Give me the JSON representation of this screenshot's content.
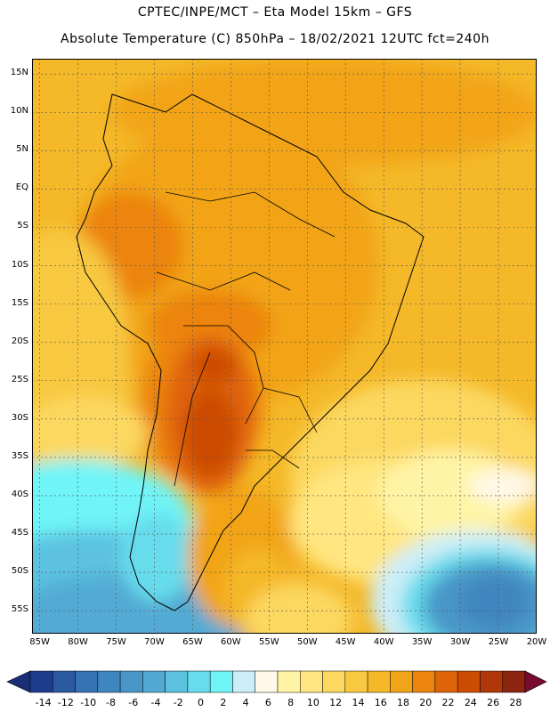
{
  "header": {
    "line1": "CPTEC/INPE/MCT – Eta Model 15km – GFS",
    "line2": "Absolute Temperature (C) 850hPa – 18/02/2021 12UTC fct=240h"
  },
  "map": {
    "lat_labels": [
      "15N",
      "10N",
      "5N",
      "EQ",
      "5S",
      "10S",
      "15S",
      "20S",
      "25S",
      "30S",
      "35S",
      "40S",
      "45S",
      "50S",
      "55S"
    ],
    "lat_values": [
      15,
      10,
      5,
      0,
      -5,
      -10,
      -15,
      -20,
      -25,
      -30,
      -35,
      -40,
      -45,
      -50,
      -55
    ],
    "lon_labels": [
      "85W",
      "80W",
      "75W",
      "70W",
      "65W",
      "60W",
      "55W",
      "50W",
      "45W",
      "40W",
      "35W",
      "30W",
      "25W",
      "20W"
    ],
    "lon_values": [
      -85,
      -80,
      -75,
      -70,
      -65,
      -60,
      -55,
      -50,
      -45,
      -40,
      -35,
      -30,
      -25,
      -20
    ],
    "extent": {
      "lon_min": -86,
      "lon_max": -20,
      "lat_min": -58,
      "lat_max": 17
    },
    "grid": true
  },
  "colorbar": {
    "labels": [
      "-14",
      "-12",
      "-10",
      "-8",
      "-6",
      "-4",
      "-2",
      "0",
      "2",
      "4",
      "6",
      "8",
      "10",
      "12",
      "14",
      "16",
      "18",
      "20",
      "22",
      "24",
      "26",
      "28"
    ],
    "colors": [
      "#1d3c8c",
      "#2b5aa0",
      "#3772b4",
      "#3f86c0",
      "#4897c8",
      "#52aad4",
      "#5cc2e0",
      "#66dcec",
      "#70f4f8",
      "#cceef8",
      "#fff8e6",
      "#fff4a6",
      "#ffe680",
      "#fcd860",
      "#f8c840",
      "#f4b828",
      "#f2a418",
      "#ec8410",
      "#e06408",
      "#cc4c04",
      "#b03808",
      "#8c2410"
    ],
    "end_left": "#1a2e78",
    "end_right": "#7a0a30"
  }
}
